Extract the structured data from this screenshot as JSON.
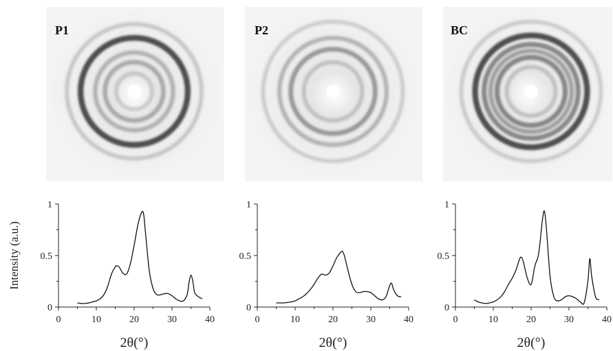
{
  "shared_ylabel": "Intensity (a.u.)",
  "chart_data": [
    {
      "type": "line",
      "panel_label": "P1",
      "xlabel": "2θ(°)",
      "xlim": [
        0,
        40
      ],
      "ylim": [
        0,
        1
      ],
      "xticks": [
        0,
        10,
        20,
        30,
        40
      ],
      "yticks": [
        0,
        0.5,
        1
      ],
      "yticklabels": [
        "0",
        "0.5",
        "1"
      ],
      "series": [
        {
          "x": [
            5,
            6,
            7,
            8,
            9,
            10,
            11,
            12,
            13,
            14,
            15,
            15.5,
            16,
            16.5,
            17,
            18,
            19,
            20,
            21,
            22,
            22.5,
            23,
            24,
            25,
            26,
            27,
            28,
            29,
            30,
            31,
            32,
            33,
            34,
            34.5,
            35,
            35.5,
            36,
            37,
            38
          ],
          "y": [
            0.04,
            0.035,
            0.035,
            0.04,
            0.05,
            0.06,
            0.08,
            0.12,
            0.2,
            0.32,
            0.39,
            0.4,
            0.39,
            0.36,
            0.33,
            0.32,
            0.42,
            0.6,
            0.8,
            0.92,
            0.9,
            0.72,
            0.35,
            0.18,
            0.12,
            0.12,
            0.13,
            0.13,
            0.11,
            0.08,
            0.06,
            0.06,
            0.12,
            0.24,
            0.31,
            0.25,
            0.14,
            0.1,
            0.08
          ]
        }
      ],
      "ring_radii": [
        0.22,
        0.36,
        0.48,
        0.66,
        0.83
      ],
      "ring_alpha": [
        0.18,
        0.35,
        0.3,
        0.85,
        0.22
      ]
    },
    {
      "type": "line",
      "panel_label": "P2",
      "xlabel": "2θ(°)",
      "xlim": [
        0,
        40
      ],
      "ylim": [
        0,
        1
      ],
      "xticks": [
        0,
        10,
        20,
        30,
        40
      ],
      "yticks": [
        0,
        0.5,
        1
      ],
      "yticklabels": [
        "0",
        "0.5",
        "1"
      ],
      "series": [
        {
          "x": [
            5,
            6,
            7,
            8,
            9,
            10,
            11,
            12,
            13,
            14,
            15,
            16,
            17,
            18,
            19,
            20,
            21,
            22,
            22.5,
            23,
            24,
            25,
            26,
            27,
            28,
            29,
            30,
            31,
            32,
            33,
            34,
            35,
            35.5,
            36,
            37,
            38
          ],
          "y": [
            0.04,
            0.04,
            0.04,
            0.045,
            0.05,
            0.06,
            0.08,
            0.1,
            0.13,
            0.17,
            0.22,
            0.28,
            0.32,
            0.31,
            0.33,
            0.4,
            0.48,
            0.53,
            0.54,
            0.5,
            0.35,
            0.22,
            0.15,
            0.14,
            0.15,
            0.15,
            0.14,
            0.11,
            0.08,
            0.07,
            0.1,
            0.21,
            0.23,
            0.17,
            0.11,
            0.1
          ]
        }
      ],
      "ring_radii": [
        0.36,
        0.52,
        0.66,
        0.86
      ],
      "ring_alpha": [
        0.22,
        0.45,
        0.3,
        0.18
      ]
    },
    {
      "type": "line",
      "panel_label": "BC",
      "xlabel": "2θ(°)",
      "xlim": [
        0,
        40
      ],
      "ylim": [
        0,
        1
      ],
      "xticks": [
        0,
        10,
        20,
        30,
        40
      ],
      "yticks": [
        0,
        0.5,
        1
      ],
      "yticklabels": [
        "0",
        "0.5",
        "1"
      ],
      "series": [
        {
          "x": [
            5,
            6,
            7,
            8,
            9,
            10,
            11,
            12,
            13,
            14,
            15,
            16,
            17,
            17.5,
            18,
            19,
            20,
            21,
            22,
            23,
            23.5,
            24,
            25,
            26,
            27,
            28,
            29,
            30,
            31,
            32,
            33,
            34,
            35,
            35.5,
            36,
            37,
            38
          ],
          "y": [
            0.07,
            0.05,
            0.04,
            0.035,
            0.04,
            0.05,
            0.07,
            0.1,
            0.15,
            0.22,
            0.28,
            0.36,
            0.47,
            0.48,
            0.43,
            0.28,
            0.22,
            0.4,
            0.52,
            0.85,
            0.93,
            0.78,
            0.3,
            0.1,
            0.06,
            0.07,
            0.1,
            0.11,
            0.1,
            0.08,
            0.05,
            0.04,
            0.25,
            0.47,
            0.3,
            0.1,
            0.07
          ]
        }
      ],
      "ring_radii": [
        0.3,
        0.42,
        0.5,
        0.58,
        0.69,
        0.86
      ],
      "ring_alpha": [
        0.22,
        0.55,
        0.4,
        0.55,
        0.85,
        0.2
      ]
    }
  ]
}
